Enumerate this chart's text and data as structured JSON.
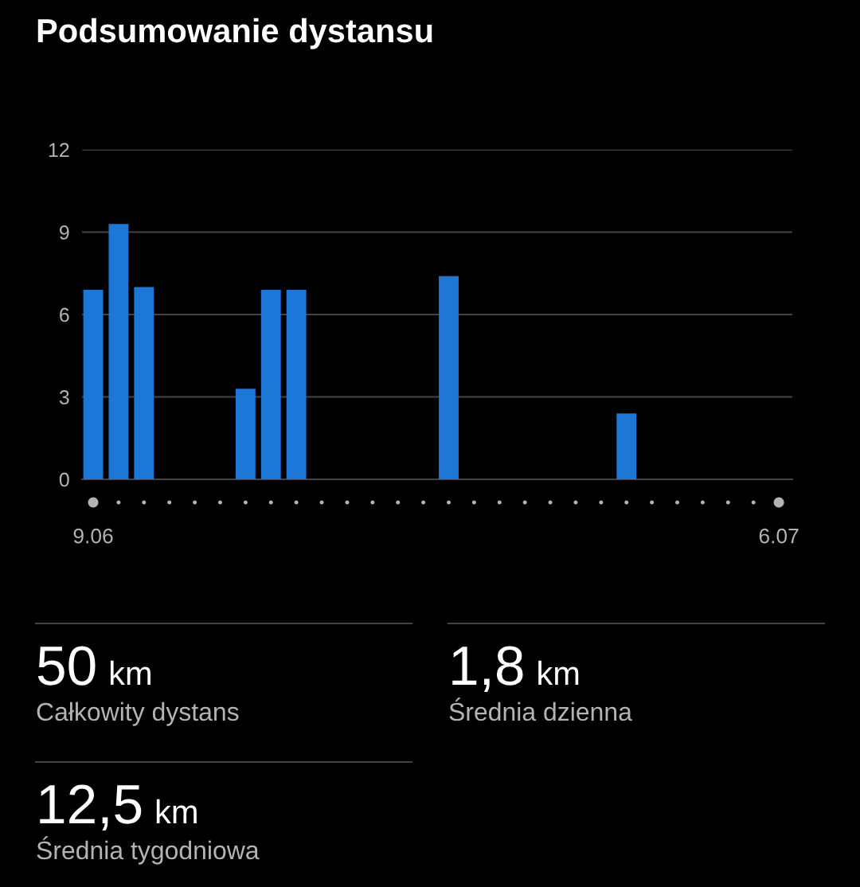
{
  "chart_data": [
    {
      "type": "bar",
      "title": "Podsumowanie dystansu",
      "categories": [
        "9.06",
        null,
        null,
        null,
        null,
        null,
        null,
        null,
        null,
        null,
        null,
        null,
        null,
        null,
        null,
        null,
        null,
        null,
        null,
        null,
        null,
        null,
        null,
        null,
        null,
        null,
        null,
        "6.07"
      ],
      "values": [
        6.9,
        9.3,
        7.0,
        0,
        0,
        0,
        3.3,
        6.9,
        6.9,
        0,
        0,
        0,
        0,
        0,
        7.4,
        0,
        0,
        0,
        0,
        0,
        0,
        2.4,
        0,
        0,
        0,
        0,
        0,
        0
      ],
      "color": "#1d77d6",
      "ylim": [
        0,
        12
      ],
      "yticks": [
        0,
        3,
        6,
        9,
        12
      ],
      "grid": "y"
    },
    {
      "type": "other",
      "annotations": [
        "50 km",
        "Całkowity dystans",
        "1,8 km",
        "Średnia dzienna",
        "12,5 km",
        "Średnia tygodniowa"
      ]
    }
  ]
}
